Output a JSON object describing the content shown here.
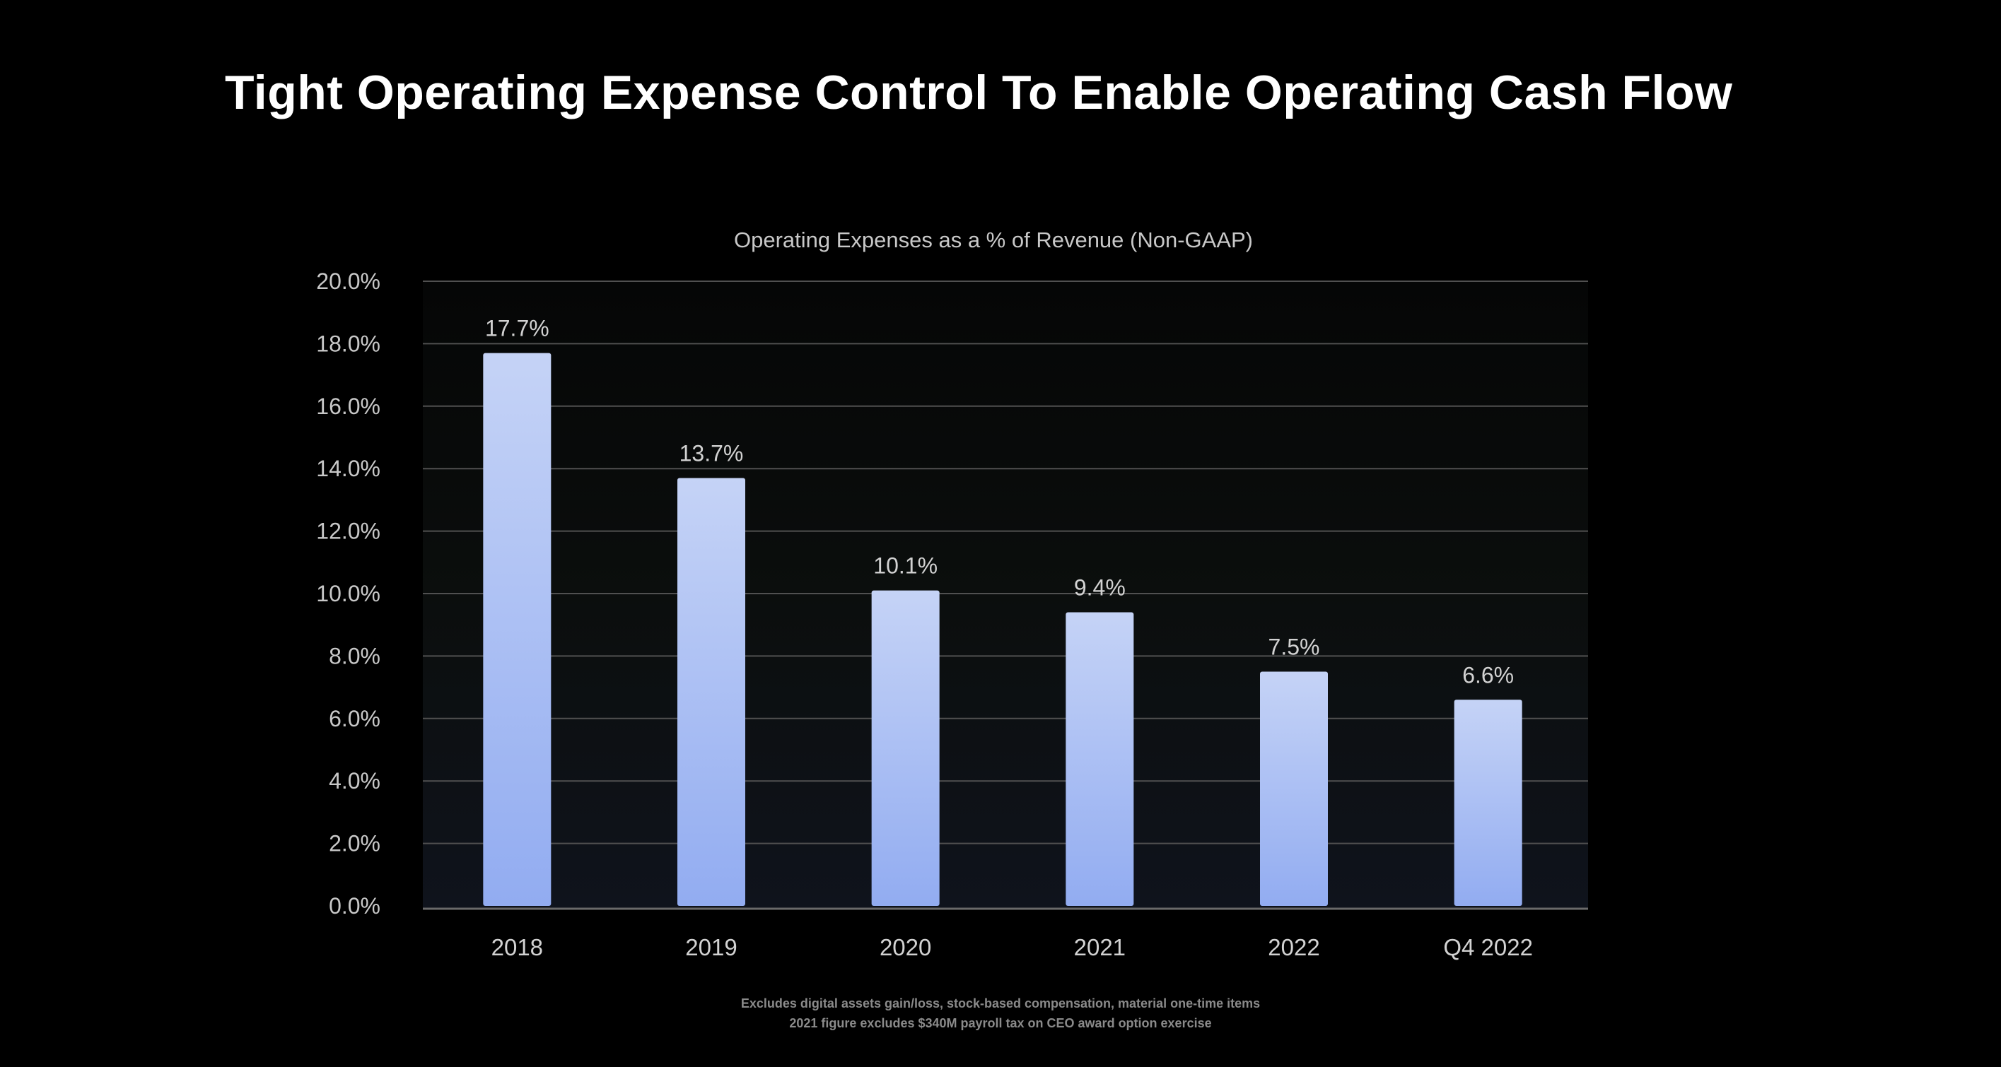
{
  "slide": {
    "title": "Tight Operating Expense Control To Enable Operating Cash Flow"
  },
  "chart_data": {
    "type": "bar",
    "title": "Operating Expenses as a % of Revenue (Non-GAAP)",
    "xlabel": "",
    "ylabel": "",
    "categories": [
      "2018",
      "2019",
      "2020",
      "2021",
      "2022",
      "Q4 2022"
    ],
    "values": [
      17.7,
      13.7,
      10.1,
      9.4,
      7.5,
      6.6
    ],
    "data_labels": [
      "17.7%",
      "13.7%",
      "10.1%",
      "9.4%",
      "7.5%",
      "6.6%"
    ],
    "ylim": [
      0,
      20
    ],
    "yticks": [
      "0.0%",
      "2.0%",
      "4.0%",
      "6.0%",
      "8.0%",
      "10.0%",
      "12.0%",
      "14.0%",
      "16.0%",
      "18.0%",
      "20.0%"
    ],
    "grid": true,
    "legend": "none",
    "bar_color_top": "#c5d3f6",
    "bar_color_bottom": "#92acf1"
  },
  "footnotes": [
    "Excludes digital assets gain/loss, stock-based compensation, material one-time items",
    "2021 figure excludes $340M payroll tax on CEO award option exercise"
  ]
}
